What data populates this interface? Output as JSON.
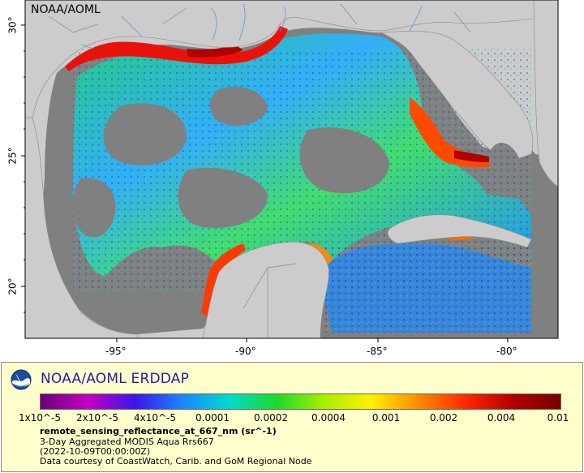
{
  "map": {
    "watermark": "NOAA/AOML",
    "lat_labels": [
      "30°",
      "25°",
      "20°"
    ],
    "lon_labels": [
      "-95°",
      "-90°",
      "-85°",
      "-80°"
    ],
    "colors": {
      "ocean_nodata": "#808080",
      "land": "#cccccc",
      "borders": "#888888",
      "rivers": "#5a9bd4"
    }
  },
  "legend": {
    "org_title": "NOAA/AOML ERDDAP",
    "colorbar_labels": [
      "1x10^-5",
      "2x10^-5",
      "4x10^-5",
      "0.0001",
      "0.0002",
      "0.0004",
      "0.001",
      "0.002",
      "0.004",
      "0.01"
    ],
    "palette": [
      "#6a0077",
      "#c400c4",
      "#3a16e6",
      "#1a86ff",
      "#00dccc",
      "#1bd92a",
      "#a8f000",
      "#fff000",
      "#ff8a00",
      "#ff2800",
      "#b00000",
      "#7a0000"
    ],
    "variable_name": "remote_sensing_reflectance_at_667_nm (sr^-1)",
    "dataset_title": "3-Day Aggregated MODIS Aqua Rrs667",
    "time_range": "(2022-10-09T00:00:00Z)",
    "credit": "Data courtesy of CoastWatch, Carib. and GoM Regional Node"
  }
}
